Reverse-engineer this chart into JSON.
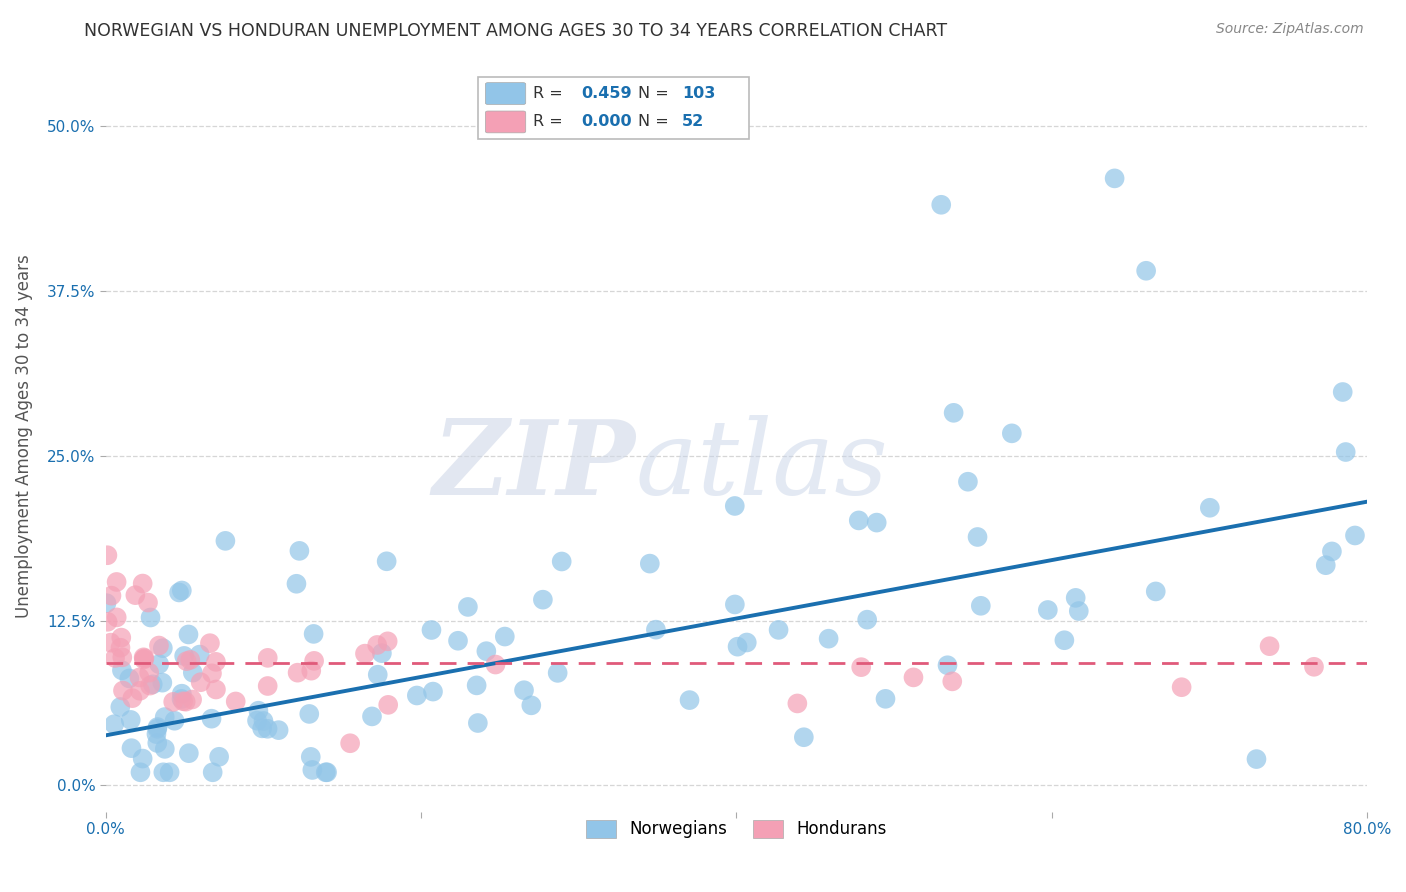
{
  "title": "NORWEGIAN VS HONDURAN UNEMPLOYMENT AMONG AGES 30 TO 34 YEARS CORRELATION CHART",
  "source": "Source: ZipAtlas.com",
  "ylabel": "Unemployment Among Ages 30 to 34 years",
  "xlim": [
    0.0,
    0.8
  ],
  "ylim": [
    -0.02,
    0.55
  ],
  "yticks": [
    0.0,
    0.125,
    0.25,
    0.375,
    0.5
  ],
  "ytick_labels": [
    "0.0%",
    "12.5%",
    "25.0%",
    "37.5%",
    "50.0%"
  ],
  "xticks": [
    0.0,
    0.2,
    0.4,
    0.6,
    0.8
  ],
  "xtick_labels": [
    "0.0%",
    "",
    "",
    "",
    "80.0%"
  ],
  "legend_blue_label": "Norwegians",
  "legend_pink_label": "Hondurans",
  "R_blue": 0.459,
  "N_blue": 103,
  "R_pink": 0.0,
  "N_pink": 52,
  "blue_color": "#92C5E8",
  "pink_color": "#F4A0B5",
  "blue_line_color": "#1a6faf",
  "pink_line_color": "#e05a7a",
  "watermark_zip": "ZIP",
  "watermark_atlas": "atlas",
  "background_color": "#ffffff",
  "grid_color": "#cccccc",
  "title_color": "#333333",
  "blue_line_x": [
    0.0,
    0.8
  ],
  "blue_line_y": [
    0.038,
    0.215
  ],
  "pink_line_x": [
    0.0,
    0.8
  ],
  "pink_line_y": [
    0.093,
    0.093
  ]
}
